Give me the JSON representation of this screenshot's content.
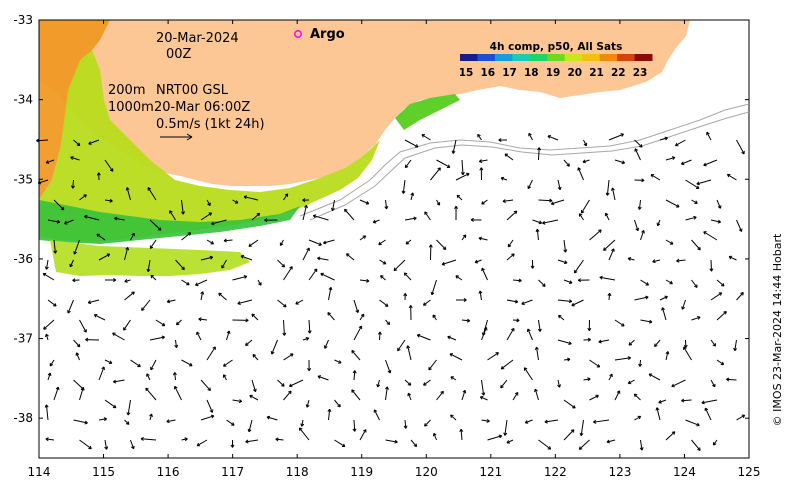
{
  "map": {
    "date_label": "20-Mar-2024",
    "time_label": "00Z",
    "argo_label": "Argo",
    "depth_200_label": "200m",
    "depth_1000_label": "1000m",
    "product_label": "NRT00 GSL",
    "product_time_label": "20-Mar 06:00Z",
    "scale_label": "0.5m/s (1kt 24h)",
    "credit": "© IMOS 23-Mar-2024 14:44 Hobart"
  },
  "colorbar": {
    "title": "4h comp, p50, All Sats",
    "ticks": [
      "15",
      "16",
      "17",
      "18",
      "19",
      "20",
      "21",
      "22",
      "23"
    ],
    "colors": [
      "#1a1a8c",
      "#1f4fd1",
      "#1a9be0",
      "#1fc9b8",
      "#1ed36a",
      "#6fd81f",
      "#cfe21c",
      "#f2c011",
      "#f08a0d",
      "#d2450a",
      "#8e0a0a"
    ]
  },
  "axes": {
    "x_ticks": [
      "114",
      "115",
      "116",
      "117",
      "118",
      "119",
      "120",
      "121",
      "122",
      "123",
      "124",
      "125"
    ],
    "y_ticks": [
      "-33",
      "-34",
      "-35",
      "-36",
      "-37",
      "-38"
    ],
    "lon_range": [
      114,
      125
    ],
    "lat_range": [
      -38.5,
      -33
    ]
  },
  "colors": {
    "land": "#fcc794",
    "argo": "#ff00ff",
    "warm": "#f09a24",
    "mid": "#7fd61c",
    "cool": "#36c23a"
  }
}
